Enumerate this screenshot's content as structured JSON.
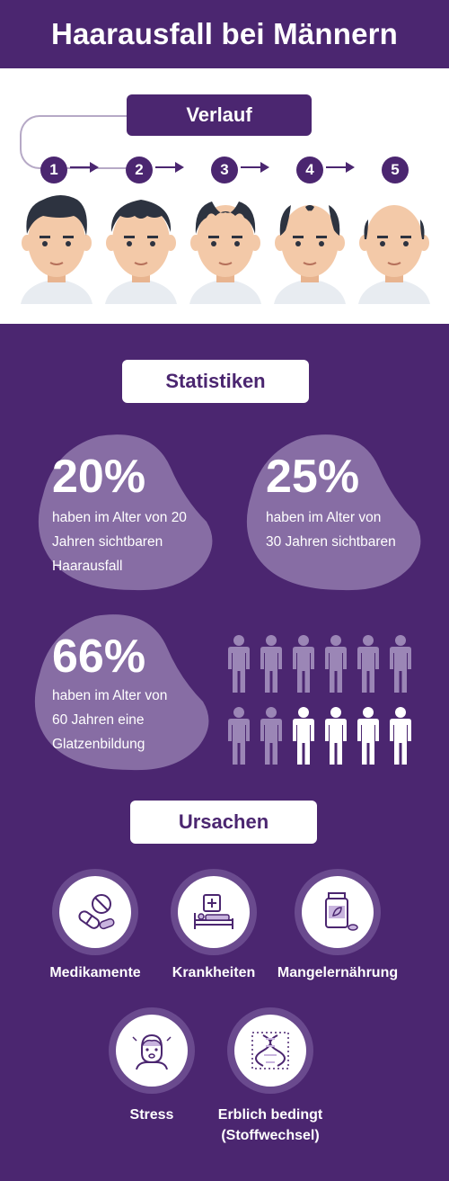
{
  "title": "Haarausfall bei Männern",
  "verlauf": {
    "label": "Verlauf",
    "steps": [
      "1",
      "2",
      "3",
      "4",
      "5"
    ]
  },
  "statistiken": {
    "label": "Statistiken",
    "stats": [
      {
        "value": "20%",
        "text_lines": [
          "haben im Alter von 20",
          "Jahren sichtbaren",
          "Haarausfall"
        ]
      },
      {
        "value": "25%",
        "text_lines": [
          "haben im Alter von",
          "30 Jahren sichtbaren"
        ]
      },
      {
        "value": "66%",
        "text_lines": [
          "haben im Alter von",
          "60 Jahren eine",
          "Glatzenbildung"
        ]
      }
    ],
    "people_total": 12,
    "people_highlighted": 4
  },
  "ursachen": {
    "label": "Ursachen",
    "items": [
      {
        "label": "Medikamente",
        "icon": "pills-icon"
      },
      {
        "label": "Krankheiten",
        "icon": "hospital-bed-icon"
      },
      {
        "label": "Mangelernährung",
        "icon": "supplement-bottle-icon"
      },
      {
        "label": "Stress",
        "icon": "stressed-face-icon"
      },
      {
        "label_lines": [
          "Erblich bedingt",
          "(Stoffwechsel)"
        ],
        "icon": "dna-icon"
      }
    ]
  },
  "colors": {
    "purple": "#4b2670",
    "light_purple": "#9b86b6",
    "white": "#ffffff",
    "skin": "#f3c9a8",
    "hair": "#2d3340"
  }
}
